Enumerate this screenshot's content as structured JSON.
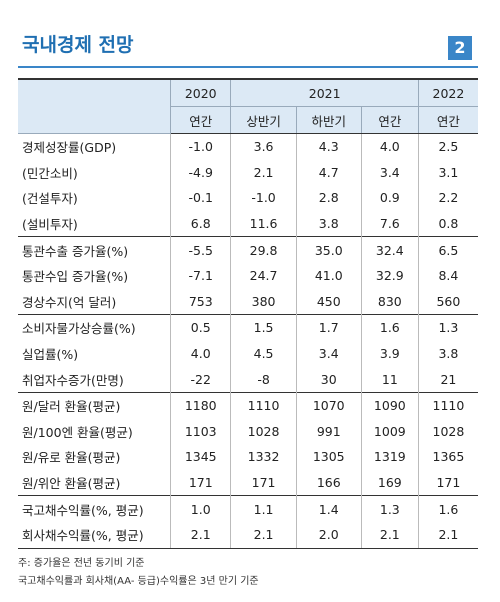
{
  "header": {
    "title": "국내경제 전망",
    "badge": "2"
  },
  "table": {
    "years": [
      "2020",
      "2021",
      "2022"
    ],
    "periods": [
      "연간",
      "상반기",
      "하반기",
      "연간",
      "연간"
    ],
    "groups": [
      [
        [
          "경제성장률(GDP)",
          "-1.0",
          "3.6",
          "4.3",
          "4.0",
          "2.5"
        ],
        [
          "(민간소비)",
          "-4.9",
          "2.1",
          "4.7",
          "3.4",
          "3.1"
        ],
        [
          "(건설투자)",
          "-0.1",
          "-1.0",
          "2.8",
          "0.9",
          "2.2"
        ],
        [
          "(설비투자)",
          "6.8",
          "11.6",
          "3.8",
          "7.6",
          "0.8"
        ]
      ],
      [
        [
          "통관수출 증가율(%)",
          "-5.5",
          "29.8",
          "35.0",
          "32.4",
          "6.5"
        ],
        [
          "통관수입 증가율(%)",
          "-7.1",
          "24.7",
          "41.0",
          "32.9",
          "8.4"
        ],
        [
          "경상수지(억 달러)",
          "753",
          "380",
          "450",
          "830",
          "560"
        ]
      ],
      [
        [
          "소비자물가상승률(%)",
          "0.5",
          "1.5",
          "1.7",
          "1.6",
          "1.3"
        ],
        [
          "실업률(%)",
          "4.0",
          "4.5",
          "3.4",
          "3.9",
          "3.8"
        ],
        [
          "취업자수증가(만명)",
          "-22",
          "-8",
          "30",
          "11",
          "21"
        ]
      ],
      [
        [
          "원/달러 환율(평균)",
          "1180",
          "1110",
          "1070",
          "1090",
          "1110"
        ],
        [
          "원/100엔 환율(평균)",
          "1103",
          "1028",
          "991",
          "1009",
          "1028"
        ],
        [
          "원/유로 환율(평균)",
          "1345",
          "1332",
          "1305",
          "1319",
          "1365"
        ],
        [
          "원/위안 환율(평균)",
          "171",
          "171",
          "166",
          "169",
          "171"
        ]
      ],
      [
        [
          "국고채수익률(%, 평균)",
          "1.0",
          "1.1",
          "1.4",
          "1.3",
          "1.6"
        ],
        [
          "회사채수익률(%, 평균)",
          "2.1",
          "2.1",
          "2.0",
          "2.1",
          "2.1"
        ]
      ]
    ]
  },
  "notes": [
    "주: 증가율은 전년 동기비 기준",
    "국고채수익률과 회사채(AA- 등급)수익률은 3년 만기 기준"
  ]
}
